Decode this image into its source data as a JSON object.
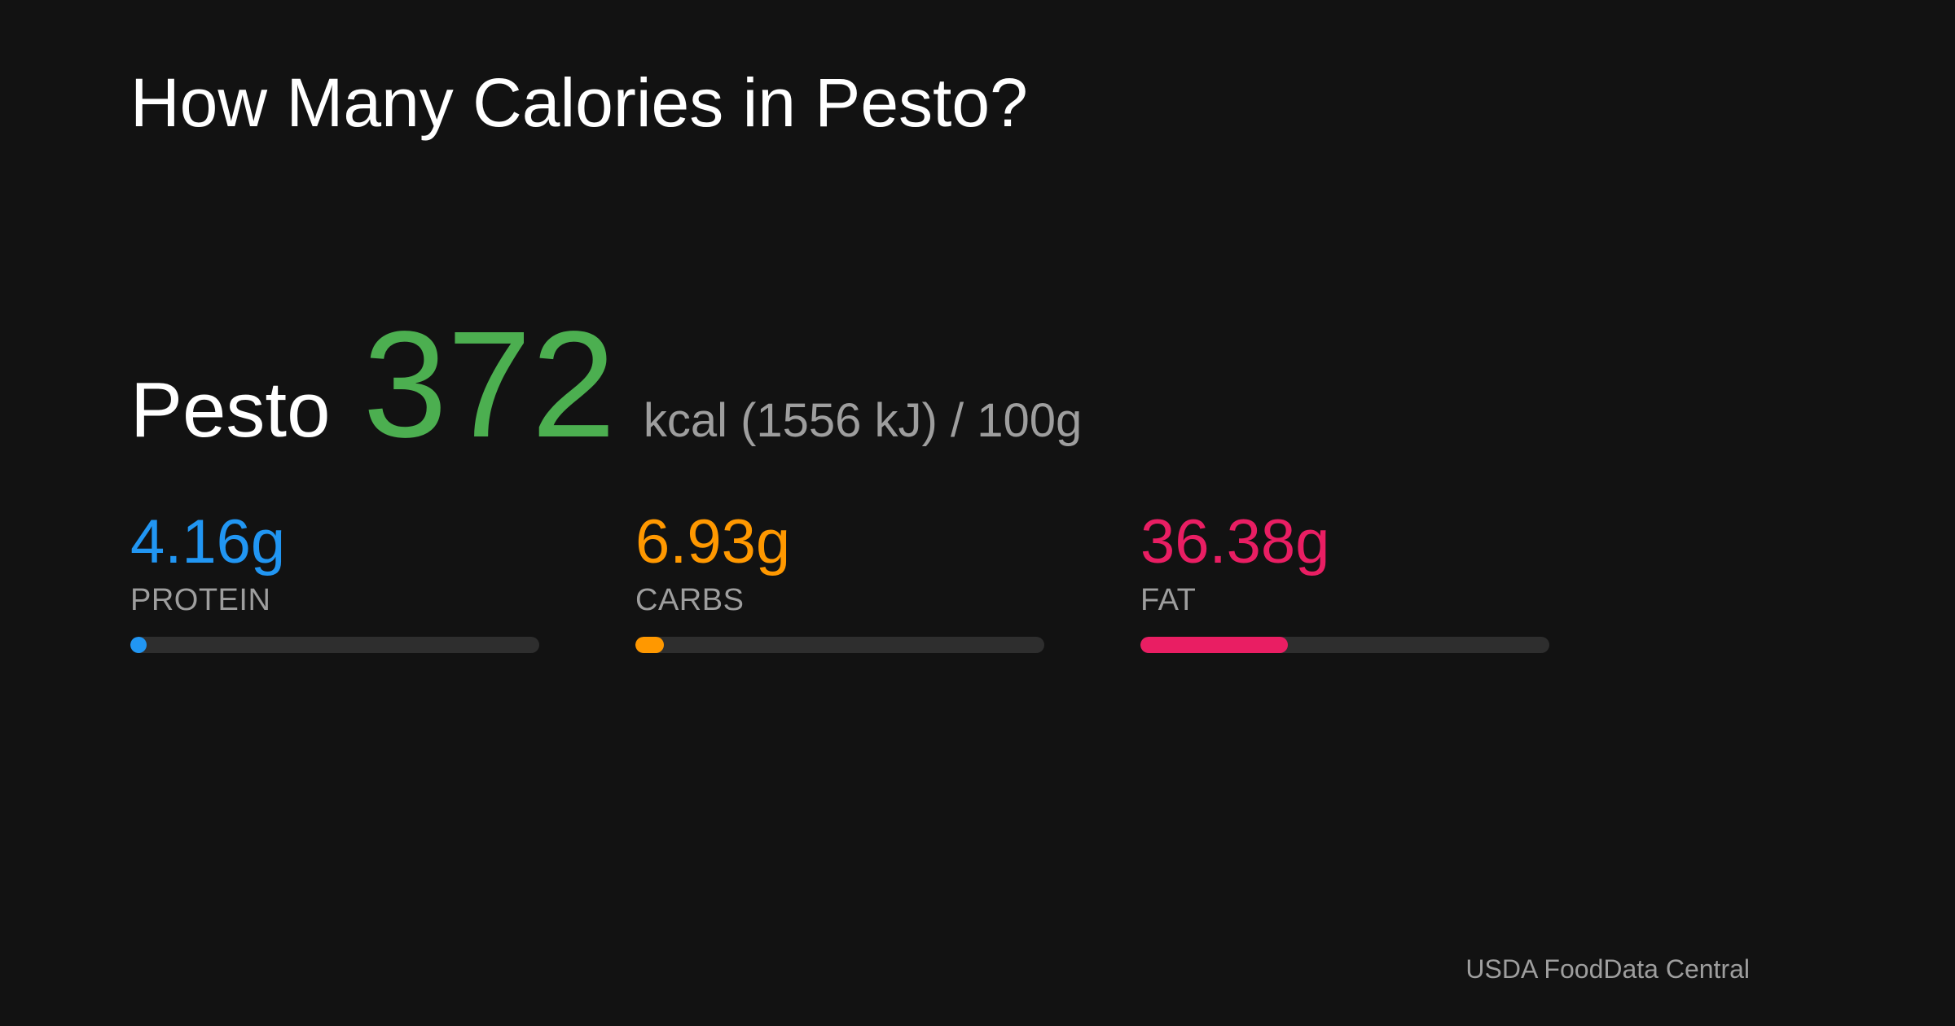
{
  "title": "How Many Calories in Pesto?",
  "food": {
    "name": "Pesto",
    "kcal": "372",
    "unit_text": "kcal (1556 kJ) / 100g",
    "kcal_color": "#4caf50"
  },
  "macros": [
    {
      "value": "4.16g",
      "label": "PROTEIN",
      "color": "#2196f3",
      "fill_fraction": 0.04
    },
    {
      "value": "6.93g",
      "label": "CARBS",
      "color": "#ff9800",
      "fill_fraction": 0.07
    },
    {
      "value": "36.38g",
      "label": "FAT",
      "color": "#e91e63",
      "fill_fraction": 0.36
    }
  ],
  "source": "USDA FoodData Central"
}
